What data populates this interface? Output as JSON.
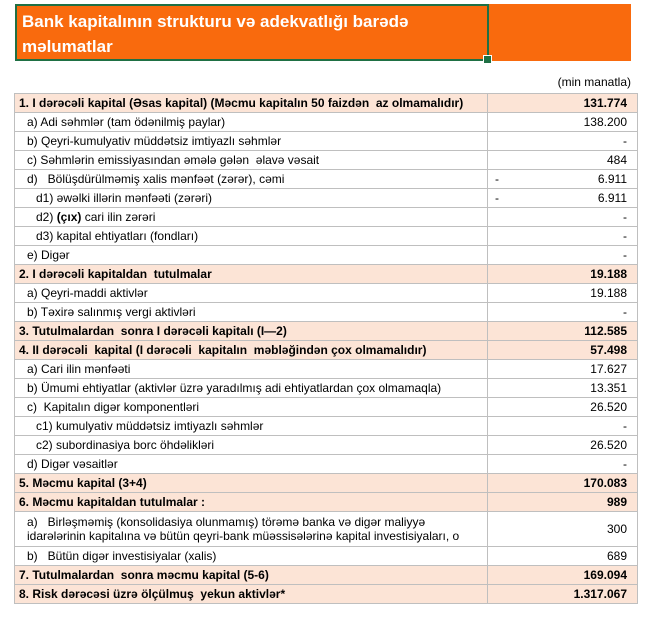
{
  "header": {
    "title": "Bank kapitalının strukturu və adekvatlığı barədə məlumatlar",
    "unit_note": "(min manatla)",
    "colors": {
      "banner_bg": "#F96A0D",
      "selection_border": "#1F7044",
      "title_text": "#FFFFFF"
    }
  },
  "table": {
    "colors": {
      "section_row_bg": "#FCE4D6",
      "grid_border": "#BFBFBF",
      "row_bg": "#FFFFFF"
    },
    "rows": [
      {
        "parts": [
          {
            "text": "1. I dərəcəli kapital",
            "bold": true
          },
          {
            "text": " (Əsas kapital) (Məcmu kapitalın 50 faizdən  az olmamalıdır)",
            "bold": false
          }
        ],
        "value": "131.774",
        "section": true,
        "indent": 0
      },
      {
        "parts": [
          {
            "text": "a) Adi səhmlər (tam ödənilmiş paylar)",
            "bold": false
          }
        ],
        "value": "138.200",
        "indent": 1
      },
      {
        "parts": [
          {
            "text": "b) Qeyri-kumulyativ müddətsiz imtiyazlı səhmlər",
            "bold": false
          }
        ],
        "value": "-",
        "indent": 1
      },
      {
        "parts": [
          {
            "text": "c) Səhmlərin emissiyasından əmələ gələn  əlavə vəsait",
            "bold": false
          }
        ],
        "value": "484",
        "indent": 1
      },
      {
        "parts": [
          {
            "text": "d)   Bölüşdürülməmiş xalis mənfəət (zərər), cəmi",
            "bold": false
          }
        ],
        "value": "6.911",
        "negative": true,
        "indent": 1
      },
      {
        "parts": [
          {
            "text": "d1) əwəlki illərin mənfəəti (zərəri)",
            "bold": false
          }
        ],
        "value": "6.911",
        "negative": true,
        "indent": 2
      },
      {
        "parts": [
          {
            "text": "d2) ",
            "bold": false
          },
          {
            "text": "(çıx)",
            "bold": true
          },
          {
            "text": " cari ilin zərəri",
            "bold": false
          }
        ],
        "value": "-",
        "indent": 2
      },
      {
        "parts": [
          {
            "text": "d3) kapital ehtiyatları (fondları)",
            "bold": false
          }
        ],
        "value": "-",
        "indent": 2
      },
      {
        "parts": [
          {
            "text": "e) Digər",
            "bold": false
          }
        ],
        "value": "-",
        "indent": 1
      },
      {
        "parts": [
          {
            "text": "2. I dərəcəli kapitaldan  tutulmalar",
            "bold": true
          }
        ],
        "value": "19.188",
        "section": true,
        "indent": 0
      },
      {
        "parts": [
          {
            "text": "a) Qeyri-maddi aktivlər",
            "bold": false
          }
        ],
        "value": "19.188",
        "indent": 1
      },
      {
        "parts": [
          {
            "text": "b) Təxirə salınmış vergi aktivləri",
            "bold": false
          }
        ],
        "value": "-",
        "indent": 1
      },
      {
        "parts": [
          {
            "text": "3. Tutulmalardan  sonra I dərəcəli kapitalı (I—2)",
            "bold": true
          }
        ],
        "value": "112.585",
        "section": true,
        "indent": 0
      },
      {
        "parts": [
          {
            "text": "4. II dərəcəli  kapital",
            "bold": true
          },
          {
            "text": " (I dərəcəli  kapitalın  məbləğindən çox olmamalıdır)",
            "bold": false
          }
        ],
        "value": "57.498",
        "section": true,
        "indent": 0
      },
      {
        "parts": [
          {
            "text": "a) Cari ilin mənfəəti",
            "bold": false
          }
        ],
        "value": "17.627",
        "indent": 1
      },
      {
        "parts": [
          {
            "text": "b) Ümumi ehtiyatlar (aktivlər üzrə yaradılmış adi ehtiyatlardan çox olmamaqla)",
            "bold": false
          }
        ],
        "value": "13.351",
        "indent": 1
      },
      {
        "parts": [
          {
            "text": "c)  Kapitalın digər komponentləri",
            "bold": false
          }
        ],
        "value": "26.520",
        "indent": 1
      },
      {
        "parts": [
          {
            "text": "c1) kumulyativ müddətsiz imtiyazlı səhmlər",
            "bold": false
          }
        ],
        "value": "-",
        "indent": 2
      },
      {
        "parts": [
          {
            "text": "c2) subordinasiya borc öhdəlikləri",
            "bold": false
          }
        ],
        "value": "26.520",
        "indent": 2
      },
      {
        "parts": [
          {
            "text": "d) Digər vəsaitlər",
            "bold": false
          }
        ],
        "value": "-",
        "indent": 1
      },
      {
        "parts": [
          {
            "text": "5. Məcmu kapital (3+4)",
            "bold": true
          }
        ],
        "value": "170.083",
        "section": true,
        "indent": 0
      },
      {
        "parts": [
          {
            "text": "6. Məcmu kapitaldan tutulmalar :",
            "bold": true
          }
        ],
        "value": "989",
        "section": true,
        "indent": 0
      },
      {
        "parts": [
          {
            "text": "a)   Birləşməmiş (konsolidasiya olunmamış) törəmə banka və digər maliyyə idarələrinin kapitalına və bütün qeyri-bank müəssisələrinə kapital investisiyaları, o",
            "bold": false
          }
        ],
        "value": "300",
        "indent": 1,
        "tall": true
      },
      {
        "parts": [
          {
            "text": "b)   Bütün digər investisiyalar (xalis)",
            "bold": false
          }
        ],
        "value": "689",
        "indent": 1
      },
      {
        "parts": [
          {
            "text": "7. Tutulmalardan  sonra məcmu kapital (5-6)",
            "bold": true
          }
        ],
        "value": "169.094",
        "section": true,
        "indent": 0
      },
      {
        "parts": [
          {
            "text": "8. Risk dərəcəsi üzrə ölçülmuş  yekun aktivlər*",
            "bold": true
          }
        ],
        "value": "1.317.067",
        "section": true,
        "indent": 0
      }
    ]
  }
}
